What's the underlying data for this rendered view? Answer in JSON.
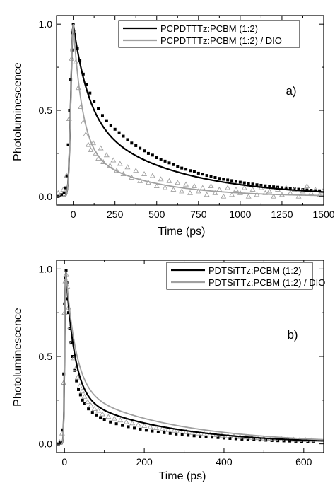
{
  "chart_data": [
    {
      "type": "scatter",
      "panel_label": "a)",
      "xlabel": "Time (ps)",
      "ylabel": "Photoluminescence",
      "xlim": [
        -100,
        1500
      ],
      "ylim": [
        -0.05,
        1.05
      ],
      "xticks": [
        0,
        250,
        500,
        750,
        1000,
        1250,
        1500
      ],
      "yticks": [
        0.0,
        0.5,
        1.0
      ],
      "yticklabels": [
        "0.0",
        "0.5",
        "1.0"
      ],
      "legend_position": "top-right",
      "series": [
        {
          "name": "PCPDTTTz:PCBM (1:2)",
          "color": "#000000",
          "marker": "square",
          "fit": {
            "amp1": 0.53,
            "tau1": 90,
            "amp2": 0.47,
            "tau2": 520,
            "rise": 14,
            "t0": 0,
            "base": 0.0
          },
          "points": [
            [
              -90,
              0.0
            ],
            [
              -70,
              0.01
            ],
            [
              -55,
              0.02
            ],
            [
              -45,
              0.05
            ],
            [
              -38,
              0.12
            ],
            [
              -30,
              0.3
            ],
            [
              -22,
              0.5
            ],
            [
              -15,
              0.68
            ],
            [
              -8,
              0.85
            ],
            [
              -3,
              0.95
            ],
            [
              0,
              1.0
            ],
            [
              10,
              0.94
            ],
            [
              25,
              0.86
            ],
            [
              40,
              0.79
            ],
            [
              60,
              0.71
            ],
            [
              80,
              0.65
            ],
            [
              100,
              0.6
            ],
            [
              125,
              0.55
            ],
            [
              150,
              0.51
            ],
            [
              175,
              0.47
            ],
            [
              200,
              0.44
            ],
            [
              225,
              0.41
            ],
            [
              250,
              0.39
            ],
            [
              275,
              0.37
            ],
            [
              300,
              0.35
            ],
            [
              325,
              0.33
            ],
            [
              350,
              0.31
            ],
            [
              375,
              0.295
            ],
            [
              400,
              0.28
            ],
            [
              425,
              0.265
            ],
            [
              450,
              0.25
            ],
            [
              475,
              0.24
            ],
            [
              500,
              0.225
            ],
            [
              525,
              0.215
            ],
            [
              550,
              0.205
            ],
            [
              575,
              0.195
            ],
            [
              600,
              0.185
            ],
            [
              625,
              0.175
            ],
            [
              650,
              0.165
            ],
            [
              675,
              0.158
            ],
            [
              700,
              0.15
            ],
            [
              725,
              0.143
            ],
            [
              750,
              0.135
            ],
            [
              775,
              0.13
            ],
            [
              800,
              0.122
            ],
            [
              825,
              0.117
            ],
            [
              850,
              0.11
            ],
            [
              875,
              0.105
            ],
            [
              900,
              0.1
            ],
            [
              925,
              0.096
            ],
            [
              950,
              0.092
            ],
            [
              975,
              0.087
            ],
            [
              1000,
              0.083
            ],
            [
              1025,
              0.079
            ],
            [
              1050,
              0.075
            ],
            [
              1075,
              0.072
            ],
            [
              1100,
              0.068
            ],
            [
              1125,
              0.065
            ],
            [
              1150,
              0.062
            ],
            [
              1175,
              0.059
            ],
            [
              1200,
              0.056
            ],
            [
              1225,
              0.054
            ],
            [
              1250,
              0.051
            ],
            [
              1275,
              0.049
            ],
            [
              1300,
              0.046
            ],
            [
              1325,
              0.044
            ],
            [
              1350,
              0.042
            ],
            [
              1375,
              0.04
            ],
            [
              1400,
              0.038
            ],
            [
              1425,
              0.036
            ],
            [
              1450,
              0.034
            ],
            [
              1475,
              0.033
            ]
          ]
        },
        {
          "name": "PCPDTTTz:PCBM (1:2) / DIO",
          "color": "#a0a0a0",
          "marker": "triangle",
          "fit": {
            "amp1": 0.72,
            "tau1": 55,
            "amp2": 0.28,
            "tau2": 380,
            "rise": 14,
            "t0": 0,
            "base": 0.0
          },
          "points": [
            [
              -90,
              0.02
            ],
            [
              -60,
              0.04
            ],
            [
              -40,
              0.12
            ],
            [
              -25,
              0.45
            ],
            [
              -10,
              0.8
            ],
            [
              0,
              0.97
            ],
            [
              15,
              0.78
            ],
            [
              30,
              0.63
            ],
            [
              45,
              0.52
            ],
            [
              60,
              0.43
            ],
            [
              75,
              0.36
            ],
            [
              90,
              0.3
            ],
            [
              105,
              0.27
            ],
            [
              120,
              0.31
            ],
            [
              135,
              0.25
            ],
            [
              150,
              0.22
            ],
            [
              165,
              0.28
            ],
            [
              180,
              0.2
            ],
            [
              200,
              0.24
            ],
            [
              220,
              0.18
            ],
            [
              240,
              0.21
            ],
            [
              260,
              0.15
            ],
            [
              280,
              0.19
            ],
            [
              300,
              0.13
            ],
            [
              325,
              0.17
            ],
            [
              350,
              0.11
            ],
            [
              375,
              0.15
            ],
            [
              400,
              0.09
            ],
            [
              425,
              0.13
            ],
            [
              450,
              0.08
            ],
            [
              475,
              0.12
            ],
            [
              500,
              0.06
            ],
            [
              525,
              0.1
            ],
            [
              550,
              0.05
            ],
            [
              575,
              0.09
            ],
            [
              600,
              0.04
            ],
            [
              625,
              0.08
            ],
            [
              650,
              0.03
            ],
            [
              675,
              0.07
            ],
            [
              700,
              0.02
            ],
            [
              725,
              0.06
            ],
            [
              750,
              0.03
            ],
            [
              775,
              0.05
            ],
            [
              800,
              0.01
            ],
            [
              825,
              0.06
            ],
            [
              850,
              0.02
            ],
            [
              875,
              0.04
            ],
            [
              900,
              0.0
            ],
            [
              925,
              0.05
            ],
            [
              950,
              0.01
            ],
            [
              975,
              0.04
            ],
            [
              1000,
              0.02
            ],
            [
              1025,
              0.05
            ],
            [
              1050,
              0.0
            ],
            [
              1075,
              0.04
            ],
            [
              1100,
              0.01
            ],
            [
              1125,
              0.05
            ],
            [
              1150,
              0.02
            ],
            [
              1175,
              0.03
            ],
            [
              1200,
              0.0
            ],
            [
              1225,
              0.04
            ],
            [
              1250,
              0.01
            ],
            [
              1275,
              0.05
            ],
            [
              1300,
              0.02
            ],
            [
              1325,
              0.04
            ],
            [
              1350,
              0.0
            ],
            [
              1375,
              0.03
            ],
            [
              1400,
              0.06
            ],
            [
              1425,
              0.02
            ],
            [
              1450,
              0.04
            ],
            [
              1475,
              0.01
            ],
            [
              1495,
              0.03
            ]
          ]
        }
      ]
    },
    {
      "type": "scatter",
      "panel_label": "b)",
      "xlabel": "Time (ps)",
      "ylabel": "Photoluminescence",
      "xlim": [
        -20,
        650
      ],
      "ylim": [
        -0.05,
        1.05
      ],
      "xticks": [
        0,
        200,
        400,
        600
      ],
      "yticks": [
        0.0,
        0.5,
        1.0
      ],
      "yticklabels": [
        "0.0",
        "0.5",
        "1.0"
      ],
      "legend_position": "top-right",
      "series": [
        {
          "name": "PDTSiTTz:PCBM (1:2)",
          "color": "#000000",
          "marker": "square",
          "fit": {
            "amp1": 0.72,
            "tau1": 22,
            "amp2": 0.28,
            "tau2": 230,
            "rise": 2.5,
            "t0": 3,
            "base": 0.0
          },
          "points": [
            [
              -15,
              0.0
            ],
            [
              -10,
              0.01
            ],
            [
              -5,
              0.08
            ],
            [
              -2,
              0.4
            ],
            [
              0,
              0.8
            ],
            [
              2,
              0.95
            ],
            [
              4,
              0.99
            ],
            [
              6,
              0.92
            ],
            [
              8,
              0.83
            ],
            [
              10,
              0.75
            ],
            [
              13,
              0.66
            ],
            [
              16,
              0.58
            ],
            [
              20,
              0.5
            ],
            [
              25,
              0.42
            ],
            [
              30,
              0.36
            ],
            [
              35,
              0.31
            ],
            [
              40,
              0.28
            ],
            [
              45,
              0.25
            ],
            [
              50,
              0.23
            ],
            [
              60,
              0.2
            ],
            [
              70,
              0.18
            ],
            [
              80,
              0.165
            ],
            [
              90,
              0.15
            ],
            [
              100,
              0.14
            ],
            [
              115,
              0.125
            ],
            [
              130,
              0.115
            ],
            [
              145,
              0.105
            ],
            [
              160,
              0.098
            ],
            [
              175,
              0.09
            ],
            [
              190,
              0.084
            ],
            [
              205,
              0.078
            ],
            [
              220,
              0.073
            ],
            [
              235,
              0.068
            ],
            [
              250,
              0.064
            ],
            [
              265,
              0.06
            ],
            [
              280,
              0.056
            ],
            [
              295,
              0.052
            ],
            [
              310,
              0.049
            ],
            [
              325,
              0.046
            ],
            [
              340,
              0.043
            ],
            [
              355,
              0.04
            ],
            [
              370,
              0.038
            ],
            [
              385,
              0.036
            ],
            [
              400,
              0.033
            ],
            [
              415,
              0.031
            ],
            [
              430,
              0.029
            ],
            [
              445,
              0.027
            ],
            [
              460,
              0.026
            ],
            [
              475,
              0.024
            ],
            [
              490,
              0.022
            ],
            [
              505,
              0.021
            ],
            [
              520,
              0.019
            ],
            [
              535,
              0.018
            ],
            [
              550,
              0.017
            ],
            [
              565,
              0.016
            ],
            [
              580,
              0.015
            ],
            [
              595,
              0.014
            ],
            [
              610,
              0.013
            ],
            [
              625,
              0.012
            ]
          ]
        },
        {
          "name": "PDTSiTTz:PCBM (1:2) / DIO",
          "color": "#a0a0a0",
          "marker": "triangle",
          "fit": {
            "amp1": 0.68,
            "tau1": 25,
            "amp2": 0.32,
            "tau2": 250,
            "rise": 2.5,
            "t0": 3,
            "base": 0.0
          },
          "points": [
            [
              -12,
              0.01
            ],
            [
              -6,
              0.06
            ],
            [
              -2,
              0.35
            ],
            [
              0,
              0.75
            ],
            [
              2,
              0.93
            ],
            [
              4,
              0.97
            ],
            [
              7,
              0.9
            ],
            [
              10,
              0.78
            ],
            [
              14,
              0.67
            ],
            [
              18,
              0.58
            ],
            [
              23,
              0.49
            ],
            [
              28,
              0.43
            ],
            [
              33,
              0.38
            ],
            [
              38,
              0.33
            ],
            [
              44,
              0.3
            ],
            [
              50,
              0.27
            ],
            [
              58,
              0.24
            ],
            [
              66,
              0.22
            ],
            [
              75,
              0.2
            ],
            [
              85,
              0.19
            ],
            [
              95,
              0.17
            ],
            [
              110,
              0.155
            ],
            [
              125,
              0.145
            ],
            [
              140,
              0.135
            ],
            [
              155,
              0.125
            ],
            [
              170,
              0.118
            ],
            [
              185,
              0.11
            ],
            [
              200,
              0.103
            ],
            [
              215,
              0.097
            ],
            [
              230,
              0.091
            ],
            [
              245,
              0.086
            ],
            [
              260,
              0.081
            ],
            [
              275,
              0.076
            ],
            [
              290,
              0.072
            ],
            [
              305,
              0.068
            ],
            [
              320,
              0.064
            ],
            [
              335,
              0.06
            ],
            [
              350,
              0.057
            ],
            [
              365,
              0.054
            ],
            [
              380,
              0.051
            ],
            [
              395,
              0.048
            ],
            [
              410,
              0.045
            ],
            [
              425,
              0.043
            ],
            [
              440,
              0.04
            ],
            [
              455,
              0.038
            ],
            [
              470,
              0.036
            ],
            [
              485,
              0.034
            ],
            [
              500,
              0.032
            ],
            [
              515,
              0.03
            ],
            [
              530,
              0.029
            ],
            [
              545,
              0.027
            ],
            [
              560,
              0.026
            ],
            [
              575,
              0.024
            ],
            [
              590,
              0.023
            ],
            [
              605,
              0.022
            ],
            [
              620,
              0.021
            ]
          ]
        }
      ]
    }
  ]
}
